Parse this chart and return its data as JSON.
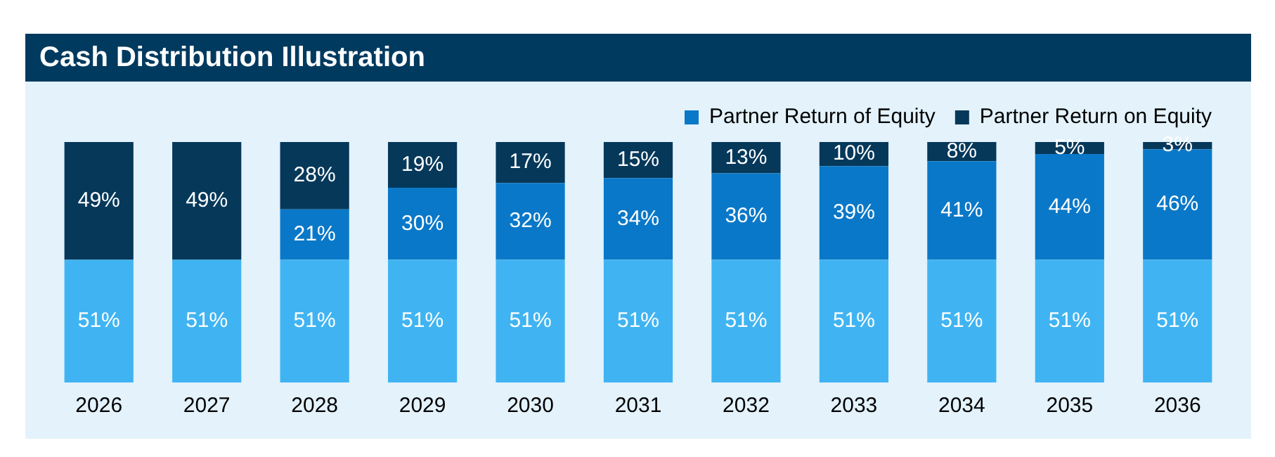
{
  "chart_data": {
    "type": "bar",
    "title": "Cash Distribution Illustration",
    "stacked": true,
    "legend": "top right",
    "grid": false,
    "categories": [
      "2026",
      "2027",
      "2028",
      "2029",
      "2030",
      "2031",
      "2032",
      "2033",
      "2034",
      "2035",
      "2036"
    ],
    "series": [
      {
        "color": "#40b4f2",
        "values": [
          51,
          51,
          51,
          51,
          51,
          51,
          51,
          51,
          51,
          51,
          51
        ],
        "value_labels": [
          "51%",
          "51%",
          "51%",
          "51%",
          "51%",
          "51%",
          "51%",
          "51%",
          "51%",
          "51%",
          "51%"
        ]
      },
      {
        "name": "Partner Return of Equity",
        "color": "#0a78c8",
        "values": [
          0,
          0,
          21,
          30,
          32,
          34,
          36,
          39,
          41,
          44,
          46
        ],
        "value_labels": [
          null,
          null,
          "21%",
          "30%",
          "32%",
          "34%",
          "36%",
          "39%",
          "41%",
          "44%",
          "46%"
        ]
      },
      {
        "name": "Partner Return on Equity",
        "color": "#06385a",
        "values": [
          49,
          49,
          28,
          19,
          17,
          15,
          13,
          10,
          8,
          5,
          3
        ],
        "value_labels": [
          "49%",
          "49%",
          "28%",
          "19%",
          "17%",
          "15%",
          "13%",
          "10%",
          "8%",
          "5%",
          "3%"
        ]
      }
    ]
  }
}
